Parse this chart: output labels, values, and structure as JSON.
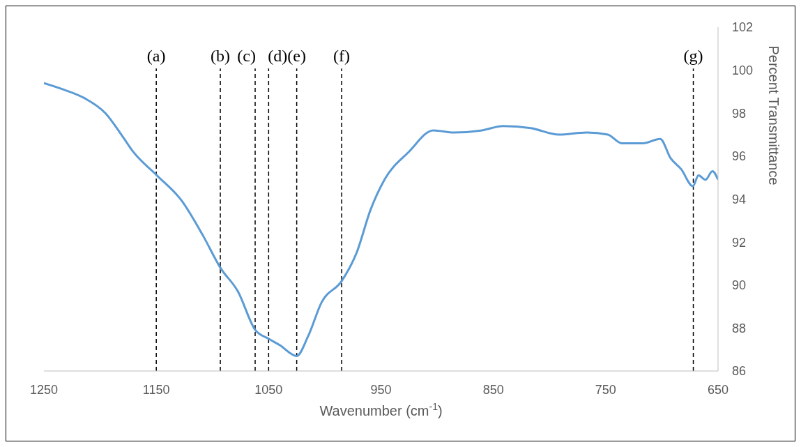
{
  "chart_data": {
    "type": "line",
    "xlabel": "Wavenumber (cm$^{-1}$)",
    "ylabel": "Percent Transmittance",
    "x": [
      1250,
      1232.6,
      1214,
      1195.3,
      1179.8,
      1170.5,
      1149.4,
      1127,
      1108.4,
      1092.9,
      1077.3,
      1061.8,
      1050,
      1040,
      1025,
      1015,
      1002.8,
      984.8,
      971.7,
      959.3,
      946.9,
      925.2,
      903.4,
      885,
      860,
      841.3,
      816.5,
      791.6,
      766.8,
      748.1,
      735.7,
      717,
      701.5,
      692.2,
      682.9,
      672.4,
      667.4,
      661.2,
      655,
      650
    ],
    "series": [
      {
        "color": "#5b9bd5",
        "values": [
          99.4,
          99.1,
          98.7,
          98,
          96.9,
          96.2,
          95.1,
          93.9,
          92.3,
          90.8,
          89.7,
          87.9,
          87.5,
          87.2,
          86.7,
          87.6,
          89.2,
          90.2,
          91.5,
          93.5,
          94.9,
          96.2,
          97.2,
          97.1,
          97.2,
          97.4,
          97.3,
          97,
          97.1,
          97,
          96.6,
          96.6,
          96.8,
          95.9,
          95.4,
          94.6,
          95.1,
          94.9,
          95.3,
          94.9
        ]
      }
    ],
    "xlim": [
      1250,
      650
    ],
    "xticks": [
      1250,
      1150,
      1050,
      950,
      850,
      750,
      650
    ],
    "ylim": [
      86,
      102
    ],
    "yticks": [
      86,
      88,
      90,
      92,
      94,
      96,
      98,
      100,
      102
    ],
    "ref_lines": [
      {
        "axis": "x",
        "value": 1150,
        "label": "(a)",
        "color": "#000000",
        "line_style": "dashed"
      },
      {
        "axis": "x",
        "value": 1093,
        "label": "(b)",
        "color": "#000000",
        "line_style": "dashed"
      },
      {
        "axis": "x",
        "value": 1062,
        "label": "(c)",
        "color": "#000000",
        "line_style": "dashed"
      },
      {
        "axis": "x",
        "value": 1050,
        "label": "(d)",
        "color": "#000000",
        "line_style": "dashed"
      },
      {
        "axis": "x",
        "value": 1025,
        "label": "(e)",
        "color": "#000000",
        "line_style": "dashed"
      },
      {
        "axis": "x",
        "value": 985,
        "label": "(f)",
        "color": "#000000",
        "line_style": "dashed"
      },
      {
        "axis": "x",
        "value": 672,
        "label": "(g)",
        "color": "#000000",
        "line_style": "dashed"
      }
    ],
    "grid": false,
    "legend": false,
    "marker": "none",
    "line_style": "solid"
  }
}
